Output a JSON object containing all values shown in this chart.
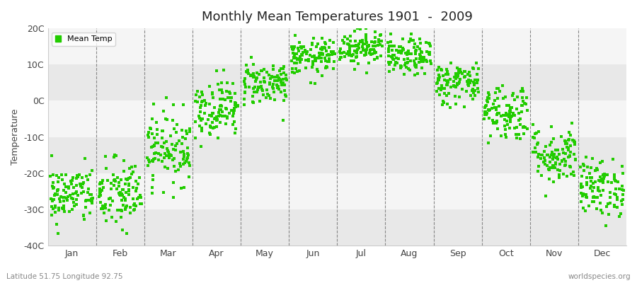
{
  "title": "Monthly Mean Temperatures 1901  -  2009",
  "ylabel": "Temperature",
  "ylim": [
    -40,
    20
  ],
  "yticks": [
    -40,
    -30,
    -20,
    -10,
    0,
    10,
    20
  ],
  "ytick_labels": [
    "-40C",
    "-30C",
    "-20C",
    "-10C",
    "0C",
    "10C",
    "20C"
  ],
  "month_names": [
    "Jan",
    "Feb",
    "Mar",
    "Apr",
    "May",
    "Jun",
    "Jul",
    "Aug",
    "Sep",
    "Oct",
    "Nov",
    "Dec"
  ],
  "dot_color": "#22cc00",
  "background_color": "#ffffff",
  "stripe_light": "#f5f5f5",
  "stripe_dark": "#e8e8e8",
  "legend_label": "Mean Temp",
  "bottom_left": "Latitude 51.75 Longitude 92.75",
  "bottom_right": "worldspecies.org",
  "monthly_means": [
    -26,
    -26,
    -13,
    -2,
    5,
    12,
    15,
    12,
    5,
    -3,
    -15,
    -24
  ],
  "monthly_stds": [
    4,
    5,
    5,
    4,
    3,
    2.5,
    2.5,
    2.5,
    3,
    4,
    4,
    4
  ],
  "n_years": 109,
  "seed": 42
}
